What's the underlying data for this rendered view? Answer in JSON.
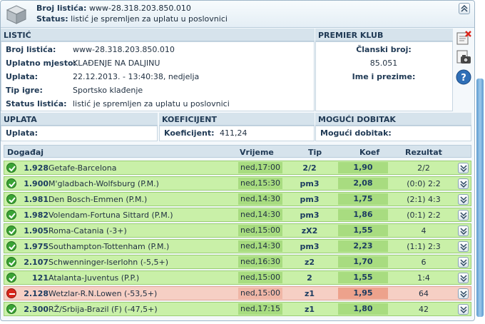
{
  "header": {
    "ticket_label": "Broj listića:",
    "ticket_value": "www-28.318.203.850.010",
    "status_label": "Status:",
    "status_value": "listić je spremljen za uplatu u poslovnici",
    "collapse_glyph": "⌃"
  },
  "listic": {
    "title": "LISTIĆ",
    "rows": [
      {
        "label": "Broj listića:",
        "value": "www-28.318.203.850.010"
      },
      {
        "label": "Uplatno mjesto:",
        "value": "KLAĐENJE NA DALJINU"
      },
      {
        "label": "Uplata:",
        "value": "22.12.2013. - 13:40:38, nedjelja"
      },
      {
        "label": "Tip igre:",
        "value": "Sportsko klađenje"
      },
      {
        "label": "Status listića:",
        "value": "listić je spremljen za uplatu u poslovnici"
      }
    ]
  },
  "klub": {
    "title": "PREMIER KLUB",
    "member_label": "Članski broj:",
    "member_value": "85.051",
    "name_label": "Ime i prezime:"
  },
  "uplata": {
    "title": "UPLATA",
    "label": "Uplata:"
  },
  "koeficijent": {
    "title": "KOEFICIJENT",
    "label": "Koeficijent:",
    "value": "411,24"
  },
  "dobitak": {
    "title": "MOGUĆI DOBITAK",
    "label": "Mogući dobitak:"
  },
  "side_icons": [
    "delete-ticket-icon",
    "camera-icon",
    "help-icon"
  ],
  "events": {
    "columns": {
      "event": "Događaj",
      "time": "Vrijeme",
      "tip": "Tip",
      "koef": "Koef",
      "result": "Rezultat"
    },
    "rows": [
      {
        "status": "won",
        "code": "1.928",
        "name": "Getafe-Barcelona",
        "time": "ned,17:00",
        "tip": "2/2",
        "koef": "1,90",
        "result": "2/2"
      },
      {
        "status": "won",
        "code": "1.900",
        "name": "M'gladbach-Wolfsburg (P.M.)",
        "time": "ned,15:30",
        "tip": "pm3",
        "koef": "2,08",
        "result": "(0:0) 2:2"
      },
      {
        "status": "won",
        "code": "1.981",
        "name": "Den Bosch-Emmen (P.M.)",
        "time": "ned,14:30",
        "tip": "pm3",
        "koef": "1,75",
        "result": "(2:1) 4:3"
      },
      {
        "status": "won",
        "code": "1.982",
        "name": "Volendam-Fortuna Sittard (P.M.)",
        "time": "ned,14:30",
        "tip": "pm3",
        "koef": "1,86",
        "result": "(0:1) 2:2"
      },
      {
        "status": "won",
        "code": "1.905",
        "name": "Roma-Catania (-3+)",
        "time": "ned,15:00",
        "tip": "zX2",
        "koef": "1,55",
        "result": "4"
      },
      {
        "status": "won",
        "code": "1.975",
        "name": "Southampton-Tottenham (P.M.)",
        "time": "ned,14:30",
        "tip": "pm3",
        "koef": "2,23",
        "result": "(1:1) 2:3"
      },
      {
        "status": "won",
        "code": "2.107",
        "name": "Schwenninger-Iserlohn (-5,5+)",
        "time": "ned,16:30",
        "tip": "z2",
        "koef": "1,70",
        "result": "6"
      },
      {
        "status": "won",
        "code": "121",
        "name": "Atalanta-Juventus (P.P.)",
        "time": "ned,15:00",
        "tip": "2",
        "koef": "1,55",
        "result": "1:4"
      },
      {
        "status": "lost",
        "code": "2.128",
        "name": "Wetzlar-R.N.Lowen (-53,5+)",
        "time": "ned,15:00",
        "tip": "z1",
        "koef": "1,95",
        "result": "64"
      },
      {
        "status": "won",
        "code": "2.300",
        "name": "RŽ/Srbija-Brazil (F) (-47,5+)",
        "time": "ned,17:15",
        "tip": "z1",
        "koef": "1,80",
        "result": "42"
      }
    ]
  }
}
